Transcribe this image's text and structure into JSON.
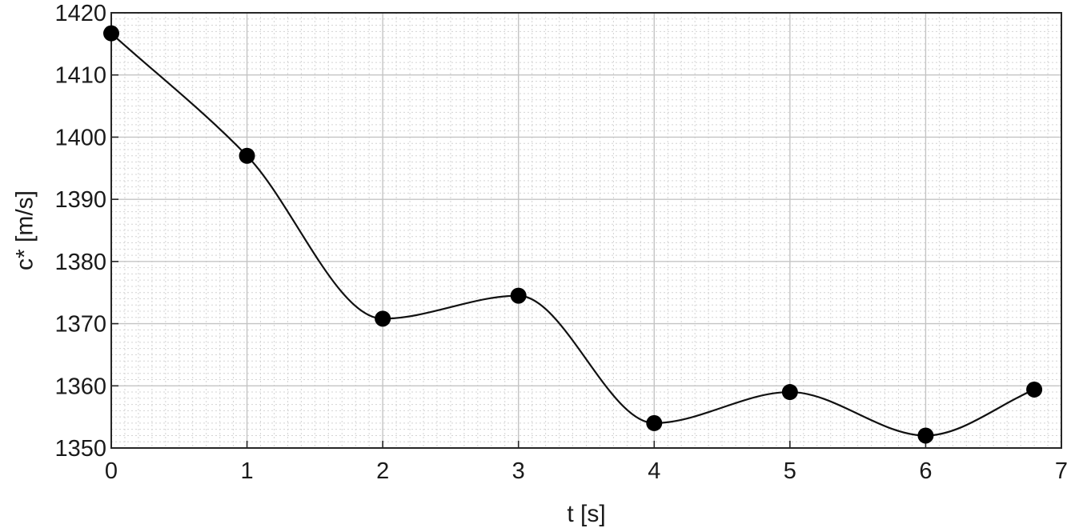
{
  "chart_data": {
    "type": "line",
    "title": "",
    "xlabel": "t [s]",
    "ylabel": "c* [m/s]",
    "xlim": [
      0,
      7
    ],
    "ylim": [
      1350,
      1420
    ],
    "xticks": [
      0,
      1,
      2,
      3,
      4,
      5,
      6,
      7
    ],
    "yticks": [
      1350,
      1360,
      1370,
      1380,
      1390,
      1400,
      1410,
      1420
    ],
    "x_minor_step": 0.1,
    "y_minor_step": 1,
    "grid": true,
    "line_style": "smooth",
    "marker": "filled-circle",
    "colors": {
      "line": "#111111",
      "marker": "#000000",
      "grid": "#c4c4c4",
      "frame": "#262626"
    },
    "series": [
      {
        "x": [
          0,
          1,
          2,
          3,
          4,
          5,
          6,
          6.8
        ],
        "values": [
          1416.7,
          1397.0,
          1370.8,
          1374.5,
          1354.0,
          1359.0,
          1352.0,
          1359.4
        ]
      }
    ]
  }
}
